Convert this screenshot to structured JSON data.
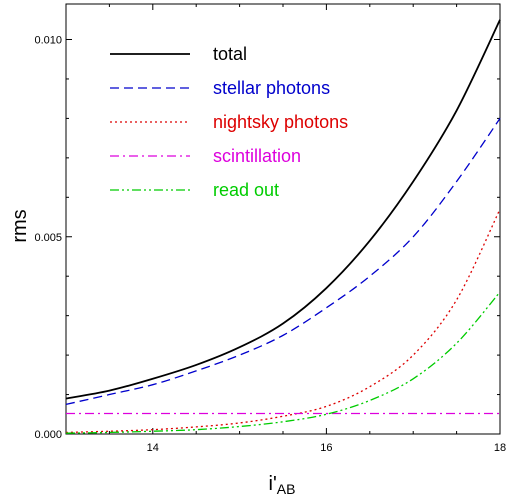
{
  "chart_data": {
    "type": "line",
    "xlabel": "i'",
    "xlabel_sub": "AB",
    "ylabel": "rms",
    "xlim": [
      13,
      18
    ],
    "ylim": [
      0,
      0.0109
    ],
    "x_ticks": [
      14,
      16,
      18
    ],
    "x_tick_labels": [
      "14",
      "16",
      "18"
    ],
    "y_ticks": [
      0,
      0.005,
      0.01
    ],
    "y_tick_labels": [
      "0.000",
      "0.005",
      "0.010"
    ],
    "grid": false,
    "legend_position": "top-left",
    "series": [
      {
        "name": "total",
        "color": "#000000",
        "dash": "solid",
        "x": [
          13,
          13.5,
          14,
          14.5,
          15,
          15.5,
          16,
          16.5,
          17,
          17.5,
          18
        ],
        "y": [
          0.0009,
          0.0011,
          0.0014,
          0.00175,
          0.0022,
          0.0028,
          0.0037,
          0.0049,
          0.0064,
          0.0082,
          0.0105
        ]
      },
      {
        "name": "stellar photons",
        "color": "#0000cc",
        "dash": "dashed",
        "x": [
          13,
          13.5,
          14,
          14.5,
          15,
          15.5,
          16,
          16.5,
          17,
          17.5,
          18
        ],
        "y": [
          0.00075,
          0.001,
          0.00125,
          0.0016,
          0.002,
          0.0025,
          0.0032,
          0.004,
          0.005,
          0.0064,
          0.008
        ]
      },
      {
        "name": "nightsky photons",
        "color": "#dd0000",
        "dash": "dotted",
        "x": [
          13,
          13.5,
          14,
          14.5,
          15,
          15.5,
          16,
          16.5,
          17,
          17.5,
          18
        ],
        "y": [
          4e-05,
          7e-05,
          0.00011,
          0.00018,
          0.00028,
          0.00045,
          0.0007,
          0.0012,
          0.002,
          0.0034,
          0.0057
        ]
      },
      {
        "name": "scintillation",
        "color": "#dd00dd",
        "dash": "dash-dot",
        "x": [
          13,
          18
        ],
        "y": [
          0.00052,
          0.00052
        ]
      },
      {
        "name": "read out",
        "color": "#00cc00",
        "dash": "dash-dot-dot",
        "x": [
          13,
          13.5,
          14,
          14.5,
          15,
          15.5,
          16,
          16.5,
          17,
          17.5,
          18
        ],
        "y": [
          2e-05,
          4e-05,
          7e-05,
          0.00011,
          0.00019,
          0.00031,
          0.0005,
          0.00085,
          0.0014,
          0.0023,
          0.0036
        ]
      }
    ]
  }
}
